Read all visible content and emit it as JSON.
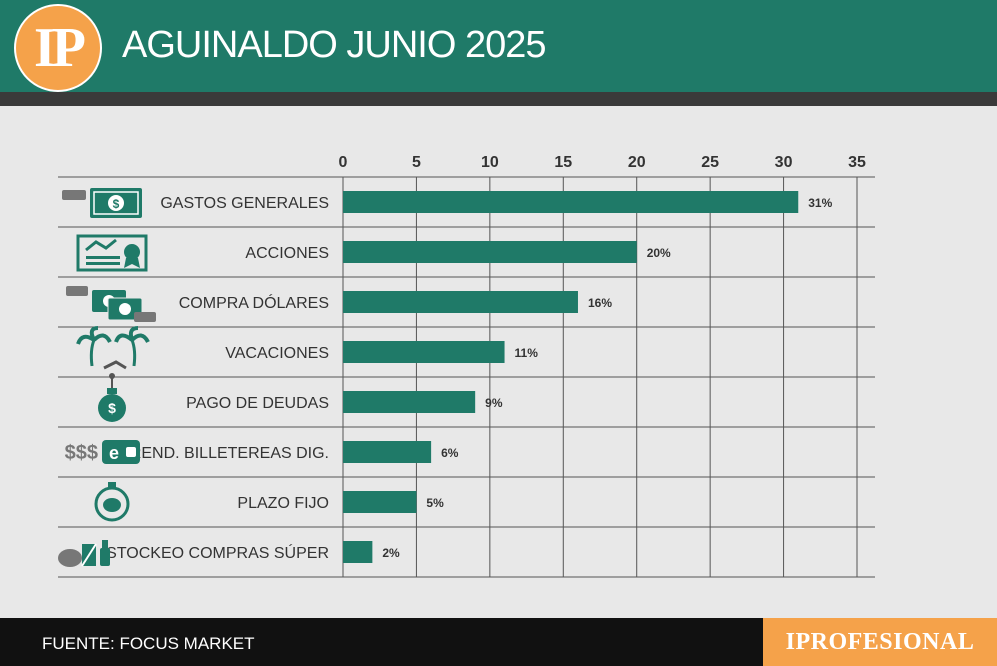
{
  "header": {
    "logo": "IP",
    "title": "AGUINALDO JUNIO 2025"
  },
  "footer": {
    "source": "FUENTE: FOCUS MARKET",
    "brand": "IPROFESIONAL"
  },
  "colors": {
    "bar": "#1f7a68",
    "header": "#1f7a68",
    "accent": "#f5a24a",
    "icon": "#1f7a68"
  },
  "chart_data": {
    "type": "bar",
    "orientation": "horizontal",
    "xlim": [
      0,
      35
    ],
    "ticks": [
      0,
      5,
      10,
      15,
      20,
      25,
      30,
      35
    ],
    "grid": true,
    "categories": [
      "GASTOS GENERALES",
      "ACCIONES",
      "COMPRA DÓLARES",
      "VACACIONES",
      "PAGO DE DEUDAS",
      "REND. BILLETEREAS DIG.",
      "PLAZO FIJO",
      "STOCKEO COMPRAS SÚPER"
    ],
    "values": [
      31,
      20,
      16,
      11,
      9,
      6,
      5,
      2
    ],
    "data_labels": [
      "31%",
      "20%",
      "16%",
      "11%",
      "9%",
      "6%",
      "5%",
      "2%"
    ],
    "icons": [
      "cash-hand-icon",
      "stock-certificate-icon",
      "dollar-exchange-icon",
      "palm-trees-icon",
      "money-bag-icon",
      "digital-wallet-icon",
      "piggy-bank-timer-icon",
      "groceries-icon"
    ]
  }
}
